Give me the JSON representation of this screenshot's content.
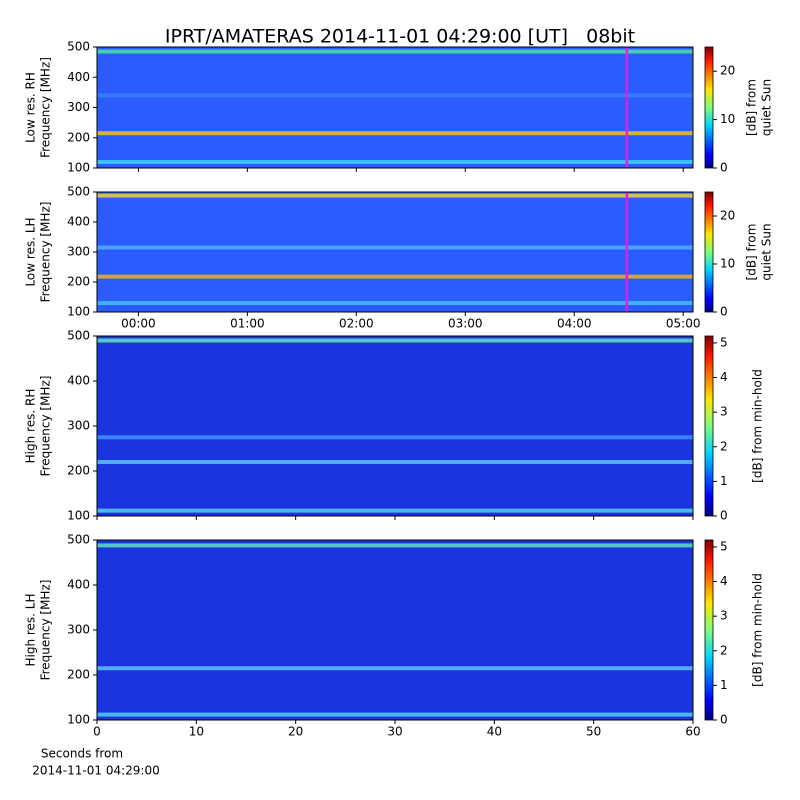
{
  "title": "IPRT/AMATERAS 2014-11-01 04:29:00 [UT]   08bit",
  "chart_data": [
    {
      "type": "heatmap",
      "ylabel": [
        "Low res. RH",
        "Frequency [MHz]"
      ],
      "ylim": [
        100,
        500
      ],
      "yticks": [
        100,
        200,
        300,
        400,
        500
      ],
      "xlim": [
        -0.38,
        5.09
      ],
      "xticks": [
        0,
        1,
        2,
        3,
        4,
        5
      ],
      "show_xtick_labels": false,
      "background": "#2a5cff",
      "bands": [
        {
          "y": 485,
          "color": "#4fe0a0"
        },
        {
          "y": 215,
          "color": "#f0c020"
        },
        {
          "y": 120,
          "color": "#40d0ff"
        },
        {
          "y": 340,
          "color": "#3a80ff"
        }
      ],
      "marker_x": 4.4833,
      "marker_color": "#e020e0",
      "clim": [
        0,
        25
      ],
      "cticks": [
        0,
        10,
        20
      ],
      "colormap": "jet",
      "colorbar_label": [
        "[dB] from",
        "quiet Sun"
      ]
    },
    {
      "type": "heatmap",
      "ylabel": [
        "Low res. LH",
        "Frequency [MHz]"
      ],
      "ylim": [
        100,
        500
      ],
      "yticks": [
        100,
        200,
        300,
        400,
        500
      ],
      "xlim": [
        -0.38,
        5.09
      ],
      "xticks": [
        {
          "value": 0,
          "label": "00:00"
        },
        {
          "value": 1,
          "label": "01:00"
        },
        {
          "value": 2,
          "label": "02:00"
        },
        {
          "value": 3,
          "label": "03:00"
        },
        {
          "value": 4,
          "label": "04:00"
        },
        {
          "value": 5,
          "label": "05:00"
        }
      ],
      "show_xtick_labels": true,
      "background": "#2a5cff",
      "bands": [
        {
          "y": 488,
          "color": "#f0d030"
        },
        {
          "y": 218,
          "color": "#f0b020"
        },
        {
          "y": 315,
          "color": "#50b0ff"
        },
        {
          "y": 130,
          "color": "#40c0ff"
        }
      ],
      "marker_x": 4.4833,
      "marker_color": "#e020e0",
      "clim": [
        0,
        25
      ],
      "cticks": [
        0,
        10,
        20
      ],
      "colormap": "jet",
      "colorbar_label": [
        "[dB] from",
        "quiet Sun"
      ]
    },
    {
      "type": "heatmap",
      "ylabel": [
        "High res. RH",
        "Frequency [MHz]"
      ],
      "ylim": [
        100,
        500
      ],
      "yticks": [
        100,
        200,
        300,
        400,
        500
      ],
      "xlim": [
        0,
        60
      ],
      "xticks": [
        0,
        10,
        20,
        30,
        40,
        50,
        60
      ],
      "show_xtick_labels": false,
      "background": "#1c34e0",
      "bands": [
        {
          "y": 490,
          "color": "#60e0c0"
        },
        {
          "y": 220,
          "color": "#60c0ff"
        },
        {
          "y": 275,
          "color": "#4090ff"
        },
        {
          "y": 112,
          "color": "#50d0f0"
        }
      ],
      "clim": [
        0,
        5.2
      ],
      "cticks": [
        0,
        1,
        2,
        3,
        4,
        5
      ],
      "colormap": "jet",
      "colorbar_label": [
        "[dB] from min-hold"
      ]
    },
    {
      "type": "heatmap",
      "ylabel": [
        "High res. LH",
        "Frequency [MHz]"
      ],
      "ylim": [
        100,
        500
      ],
      "yticks": [
        100,
        200,
        300,
        400,
        500
      ],
      "xlim": [
        0,
        60
      ],
      "xticks": [
        0,
        10,
        20,
        30,
        40,
        50,
        60
      ],
      "show_xtick_labels": true,
      "xlabel": [
        "Seconds from",
        "2014-11-01 04:29:00"
      ],
      "background": "#1c34e0",
      "bands": [
        {
          "y": 488,
          "color": "#60e0c0"
        },
        {
          "y": 215,
          "color": "#60c0ff"
        },
        {
          "y": 112,
          "color": "#50d0f0"
        }
      ],
      "clim": [
        0,
        5.2
      ],
      "cticks": [
        0,
        1,
        2,
        3,
        4,
        5
      ],
      "colormap": "jet",
      "colorbar_label": [
        "[dB] from min-hold"
      ]
    }
  ]
}
